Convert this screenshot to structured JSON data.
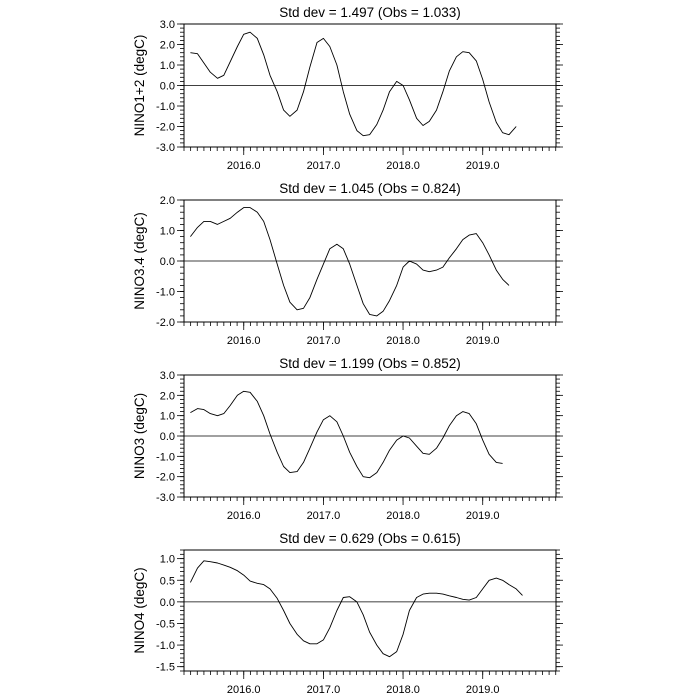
{
  "chart_data": [
    {
      "type": "line",
      "title": "Std dev = 1.497 (Obs = 1.033)",
      "ylabel": "NINO1+2 (degC)",
      "xlabel": "",
      "xlim": [
        2015.25,
        2019.92
      ],
      "ylim": [
        -3.0,
        3.0
      ],
      "ymajor": 1.0,
      "yminor": 0.2,
      "yticks": [
        "3.0",
        "2.0",
        "1.0",
        "0.0",
        "-1.0",
        "-2.0",
        "-3.0"
      ],
      "xticks": [
        "2016.0",
        "2017.0",
        "2018.0",
        "2019.0"
      ],
      "grid": false,
      "x": [
        2015.33,
        2015.42,
        2015.58,
        2015.67,
        2015.75,
        2015.92,
        2016.0,
        2016.08,
        2016.17,
        2016.25,
        2016.33,
        2016.42,
        2016.5,
        2016.58,
        2016.67,
        2016.75,
        2016.83,
        2016.92,
        2017.0,
        2017.08,
        2017.17,
        2017.25,
        2017.33,
        2017.42,
        2017.5,
        2017.58,
        2017.67,
        2017.75,
        2017.83,
        2017.92,
        2018.0,
        2018.08,
        2018.17,
        2018.25,
        2018.33,
        2018.42,
        2018.5,
        2018.58,
        2018.67,
        2018.75,
        2018.83,
        2018.92,
        2019.0,
        2019.08,
        2019.17,
        2019.25,
        2019.33,
        2019.42,
        2019.5,
        2019.58,
        2019.67,
        2019.75
      ],
      "values": [
        1.6,
        1.55,
        0.65,
        0.35,
        0.5,
        1.9,
        2.5,
        2.6,
        2.3,
        1.5,
        0.5,
        -0.3,
        -1.2,
        -1.5,
        -1.2,
        -0.3,
        0.9,
        2.1,
        2.3,
        1.9,
        1.0,
        -0.3,
        -1.4,
        -2.2,
        -2.45,
        -2.4,
        -1.9,
        -1.2,
        -0.3,
        0.2,
        0.0,
        -0.7,
        -1.6,
        -1.95,
        -1.75,
        -1.2,
        -0.3,
        0.7,
        1.4,
        1.65,
        1.6,
        1.2,
        0.3,
        -0.8,
        -1.8,
        -2.3,
        -2.4,
        -2.0,
        null,
        null,
        null,
        null
      ]
    },
    {
      "type": "line",
      "title": "Std dev = 1.045 (Obs = 0.824)",
      "ylabel": "NINO3.4 (degC)",
      "xlabel": "",
      "xlim": [
        2015.25,
        2019.92
      ],
      "ylim": [
        -2.0,
        2.0
      ],
      "ymajor": 1.0,
      "yminor": 0.2,
      "yticks": [
        "2.0",
        "1.0",
        "0.0",
        "-1.0",
        "-2.0"
      ],
      "xticks": [
        "2016.0",
        "2017.0",
        "2018.0",
        "2019.0"
      ],
      "grid": false,
      "x": [
        2015.33,
        2015.42,
        2015.5,
        2015.58,
        2015.67,
        2015.75,
        2015.83,
        2015.92,
        2016.0,
        2016.08,
        2016.17,
        2016.25,
        2016.33,
        2016.42,
        2016.5,
        2016.58,
        2016.67,
        2016.75,
        2016.83,
        2016.92,
        2017.0,
        2017.08,
        2017.17,
        2017.25,
        2017.33,
        2017.42,
        2017.5,
        2017.58,
        2017.67,
        2017.75,
        2017.83,
        2017.92,
        2018.0,
        2018.08,
        2018.17,
        2018.25,
        2018.33,
        2018.42,
        2018.5,
        2018.58,
        2018.67,
        2018.75,
        2018.83,
        2018.92,
        2019.0,
        2019.08,
        2019.17,
        2019.25,
        2019.33,
        2019.42,
        2019.5,
        2019.58,
        2019.67,
        2019.75
      ],
      "values": [
        0.8,
        1.1,
        1.3,
        1.3,
        1.2,
        1.3,
        1.4,
        1.6,
        1.75,
        1.75,
        1.6,
        1.3,
        0.7,
        -0.1,
        -0.8,
        -1.35,
        -1.6,
        -1.55,
        -1.2,
        -0.6,
        -0.1,
        0.4,
        0.55,
        0.4,
        -0.1,
        -0.8,
        -1.4,
        -1.75,
        -1.8,
        -1.65,
        -1.3,
        -0.8,
        -0.2,
        0.0,
        -0.1,
        -0.3,
        -0.35,
        -0.3,
        -0.2,
        0.1,
        0.4,
        0.7,
        0.85,
        0.9,
        0.6,
        0.2,
        -0.3,
        -0.6,
        -0.8,
        null,
        null,
        null,
        null,
        null
      ]
    },
    {
      "type": "line",
      "title": "Std dev = 1.199 (Obs = 0.852)",
      "ylabel": "NINO3 (degC)",
      "xlabel": "",
      "xlim": [
        2015.25,
        2019.92
      ],
      "ylim": [
        -3.0,
        3.0
      ],
      "ymajor": 1.0,
      "yminor": 0.2,
      "yticks": [
        "3.0",
        "2.0",
        "1.0",
        "0.0",
        "-1.0",
        "-2.0",
        "-3.0"
      ],
      "xticks": [
        "2016.0",
        "2017.0",
        "2018.0",
        "2019.0"
      ],
      "grid": false,
      "x": [
        2015.33,
        2015.42,
        2015.5,
        2015.58,
        2015.67,
        2015.75,
        2015.83,
        2015.92,
        2016.0,
        2016.08,
        2016.17,
        2016.25,
        2016.33,
        2016.42,
        2016.5,
        2016.58,
        2016.67,
        2016.75,
        2016.83,
        2016.92,
        2017.0,
        2017.08,
        2017.17,
        2017.25,
        2017.33,
        2017.42,
        2017.5,
        2017.58,
        2017.67,
        2017.75,
        2017.83,
        2017.92,
        2018.0,
        2018.08,
        2018.17,
        2018.25,
        2018.33,
        2018.42,
        2018.5,
        2018.58,
        2018.67,
        2018.75,
        2018.83,
        2018.92,
        2019.0,
        2019.08,
        2019.17,
        2019.25,
        2019.33,
        2019.42,
        2019.5,
        2019.58,
        2019.67,
        2019.75
      ],
      "values": [
        1.15,
        1.35,
        1.3,
        1.1,
        1.0,
        1.1,
        1.5,
        2.0,
        2.2,
        2.15,
        1.7,
        1.0,
        0.1,
        -0.8,
        -1.5,
        -1.8,
        -1.75,
        -1.3,
        -0.6,
        0.2,
        0.8,
        1.0,
        0.7,
        0.0,
        -0.8,
        -1.5,
        -2.0,
        -2.05,
        -1.8,
        -1.3,
        -0.7,
        -0.2,
        0.0,
        -0.1,
        -0.5,
        -0.85,
        -0.9,
        -0.6,
        -0.1,
        0.5,
        1.0,
        1.2,
        1.1,
        0.6,
        -0.2,
        -0.9,
        -1.3,
        -1.35,
        null,
        null,
        null,
        null,
        null,
        null
      ]
    },
    {
      "type": "line",
      "title": "Std dev = 0.629 (Obs = 0.615)",
      "ylabel": "NINO4 (degC)",
      "xlabel": "",
      "xlim": [
        2015.25,
        2019.92
      ],
      "ylim": [
        -1.6,
        1.2
      ],
      "ymajor": 0.5,
      "yminor": 0.1,
      "yticks": [
        "1.0",
        "0.5",
        "0.0",
        "-0.5",
        "-1.0",
        "-1.5"
      ],
      "xticks": [
        "2016.0",
        "2017.0",
        "2018.0",
        "2019.0"
      ],
      "grid": false,
      "x": [
        2015.33,
        2015.42,
        2015.5,
        2015.58,
        2015.67,
        2015.75,
        2015.83,
        2015.92,
        2016.0,
        2016.08,
        2016.17,
        2016.25,
        2016.33,
        2016.42,
        2016.5,
        2016.58,
        2016.67,
        2016.75,
        2016.83,
        2016.92,
        2017.0,
        2017.08,
        2017.17,
        2017.25,
        2017.33,
        2017.42,
        2017.5,
        2017.58,
        2017.67,
        2017.75,
        2017.83,
        2017.92,
        2018.0,
        2018.08,
        2018.17,
        2018.25,
        2018.33,
        2018.42,
        2018.5,
        2018.58,
        2018.67,
        2018.75,
        2018.83,
        2018.92,
        2019.0,
        2019.08,
        2019.17,
        2019.25,
        2019.33,
        2019.42,
        2019.5,
        2019.58,
        2019.67,
        2019.75
      ],
      "values": [
        0.45,
        0.78,
        0.95,
        0.93,
        0.9,
        0.85,
        0.8,
        0.72,
        0.62,
        0.48,
        0.43,
        0.4,
        0.3,
        0.08,
        -0.2,
        -0.5,
        -0.75,
        -0.9,
        -0.97,
        -0.97,
        -0.88,
        -0.6,
        -0.2,
        0.1,
        0.12,
        0.0,
        -0.3,
        -0.7,
        -1.0,
        -1.2,
        -1.27,
        -1.15,
        -0.75,
        -0.2,
        0.1,
        0.18,
        0.2,
        0.2,
        0.18,
        0.14,
        0.1,
        0.06,
        0.04,
        0.1,
        0.3,
        0.5,
        0.55,
        0.5,
        0.4,
        0.3,
        0.15,
        null,
        null,
        null
      ]
    }
  ]
}
